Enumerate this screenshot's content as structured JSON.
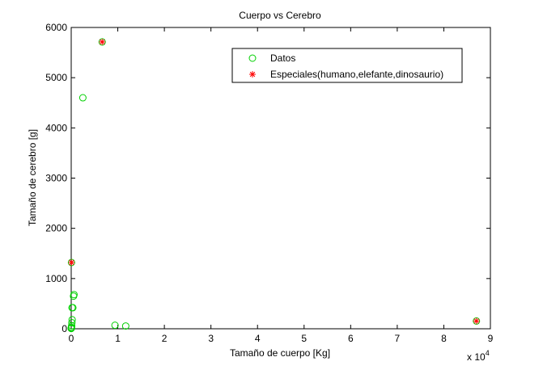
{
  "chart_data": {
    "type": "scatter",
    "title": "Cuerpo vs Cerebro",
    "xlabel": "Tamaño de cuerpo [Kg]",
    "ylabel": "Tamaño de cerebro [g]",
    "x_multiplier_label": "x 10",
    "x_multiplier_exponent": "4",
    "xlim": [
      0,
      90000
    ],
    "ylim": [
      0,
      6000
    ],
    "xticks": [
      0,
      10000,
      20000,
      30000,
      40000,
      50000,
      60000,
      70000,
      80000,
      90000
    ],
    "xtick_labels": [
      "0",
      "1",
      "2",
      "3",
      "4",
      "5",
      "6",
      "7",
      "8",
      "9"
    ],
    "yticks": [
      0,
      1000,
      2000,
      3000,
      4000,
      5000,
      6000
    ],
    "ytick_labels": [
      "0",
      "1000",
      "2000",
      "3000",
      "4000",
      "5000",
      "6000"
    ],
    "grid": false,
    "legend_position": "top-right",
    "series": [
      {
        "name": "Datos",
        "marker": "circle",
        "color": "#00d000",
        "points": [
          [
            0,
            5
          ],
          [
            20,
            15
          ],
          [
            50,
            30
          ],
          [
            100,
            60
          ],
          [
            150,
            120
          ],
          [
            200,
            180
          ],
          [
            180,
            420
          ],
          [
            350,
            420
          ],
          [
            500,
            650
          ],
          [
            600,
            680
          ],
          [
            2500,
            4600
          ],
          [
            6650,
            5712
          ],
          [
            9400,
            70
          ],
          [
            11700,
            55
          ],
          [
            62,
            1320
          ],
          [
            87000,
            154
          ]
        ]
      },
      {
        "name": "Especiales(humano,elefante,dinosaurio)",
        "marker": "asterisk",
        "color": "#ff0000",
        "points": [
          [
            62,
            1320
          ],
          [
            6650,
            5712
          ],
          [
            87000,
            154
          ]
        ]
      }
    ]
  }
}
